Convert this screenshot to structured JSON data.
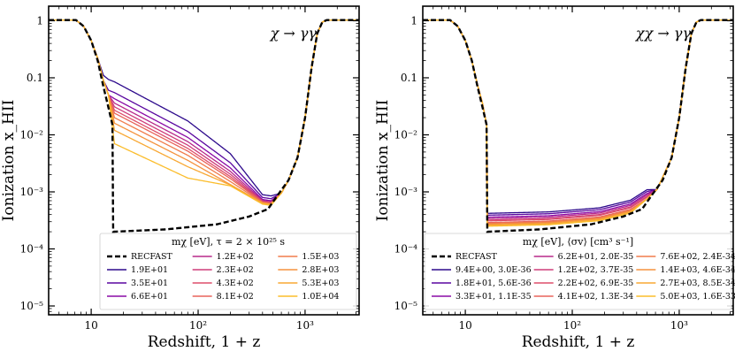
{
  "chart_data": [
    {
      "type": "line",
      "panel": "left",
      "ylabel": "Ionization x_HII",
      "xlabel": "Redshift, 1 + z",
      "xscale": "log",
      "yscale": "log",
      "xlim": [
        4,
        3200
      ],
      "ylim": [
        7e-06,
        1.8
      ],
      "x_ticks": [
        "10",
        "10²",
        "10³"
      ],
      "y_ticks": [
        "1",
        "0.1",
        "10⁻²",
        "10⁻³",
        "10⁻⁴",
        "10⁻⁵"
      ],
      "annotation": "χ → γγ",
      "legend_title": "mχ [eV], τ = 2 × 10²⁵ s",
      "baseline": {
        "name": "RECFAST",
        "color": "#000000"
      },
      "series": [
        {
          "name": "1.9E+01",
          "color": "#2d0a8c",
          "y17": 0.085,
          "y_min": 0.00085
        },
        {
          "name": "3.5E+01",
          "color": "#5a07a0",
          "y17": 0.055,
          "y_min": 0.00076
        },
        {
          "name": "6.6E+01",
          "color": "#8a0aa6",
          "y17": 0.043,
          "y_min": 0.0007
        },
        {
          "name": "1.2E+02",
          "color": "#b82a8a",
          "y17": 0.036,
          "y_min": 0.00067
        },
        {
          "name": "2.3E+02",
          "color": "#cf3d7a",
          "y17": 0.031,
          "y_min": 0.00065
        },
        {
          "name": "4.3E+02",
          "color": "#de4f6b",
          "y17": 0.027,
          "y_min": 0.00064
        },
        {
          "name": "8.1E+02",
          "color": "#e8645b",
          "y17": 0.024,
          "y_min": 0.00063
        },
        {
          "name": "1.5E+03",
          "color": "#f07c4c",
          "y17": 0.02,
          "y_min": 0.00062
        },
        {
          "name": "2.8E+03",
          "color": "#f5923e",
          "y17": 0.016,
          "y_min": 0.00061
        },
        {
          "name": "5.3E+03",
          "color": "#f8a834",
          "y17": 0.012,
          "y_min": 0.0006
        },
        {
          "name": "1.0E+04",
          "color": "#fbbd2c",
          "y17": 0.007,
          "y_min": 0.00058
        }
      ]
    },
    {
      "type": "line",
      "panel": "right",
      "ylabel": "Ionization x_HII",
      "xlabel": "Redshift, 1 + z",
      "xscale": "log",
      "yscale": "log",
      "xlim": [
        4,
        3200
      ],
      "ylim": [
        7e-06,
        1.8
      ],
      "x_ticks": [
        "10",
        "10²",
        "10³"
      ],
      "y_ticks": [
        "1",
        "0.1",
        "10⁻²",
        "10⁻³",
        "10⁻⁴",
        "10⁻⁵"
      ],
      "annotation": "χχ → γγ",
      "legend_title": "mχ [eV], ⟨σv⟩ [cm³ s⁻¹]",
      "baseline": {
        "name": "RECFAST",
        "color": "#000000"
      },
      "series": [
        {
          "name": "9.4E+00, 3.0E-36",
          "color": "#2d0a8c",
          "y17": 0.00042
        },
        {
          "name": "1.8E+01, 5.6E-36",
          "color": "#5a07a0",
          "y17": 0.00039
        },
        {
          "name": "3.3E+01, 1.1E-35",
          "color": "#8a0aa6",
          "y17": 0.00036
        },
        {
          "name": "6.2E+01, 2.0E-35",
          "color": "#b82a8a",
          "y17": 0.00034
        },
        {
          "name": "1.2E+02, 3.7E-35",
          "color": "#cf3d7a",
          "y17": 0.00032
        },
        {
          "name": "2.2E+02, 6.9E-35",
          "color": "#de4f6b",
          "y17": 0.00031
        },
        {
          "name": "4.1E+02, 1.3E-34",
          "color": "#e8645b",
          "y17": 0.00029
        },
        {
          "name": "7.6E+02, 2.4E-34",
          "color": "#f07c4c",
          "y17": 0.00028
        },
        {
          "name": "1.4E+03, 4.6E-34",
          "color": "#f5923e",
          "y17": 0.00027
        },
        {
          "name": "2.7E+03, 8.5E-34",
          "color": "#f8a834",
          "y17": 0.00026
        },
        {
          "name": "5.0E+03, 1.6E-33",
          "color": "#fbbd2c",
          "y17": 0.00025
        }
      ]
    }
  ]
}
